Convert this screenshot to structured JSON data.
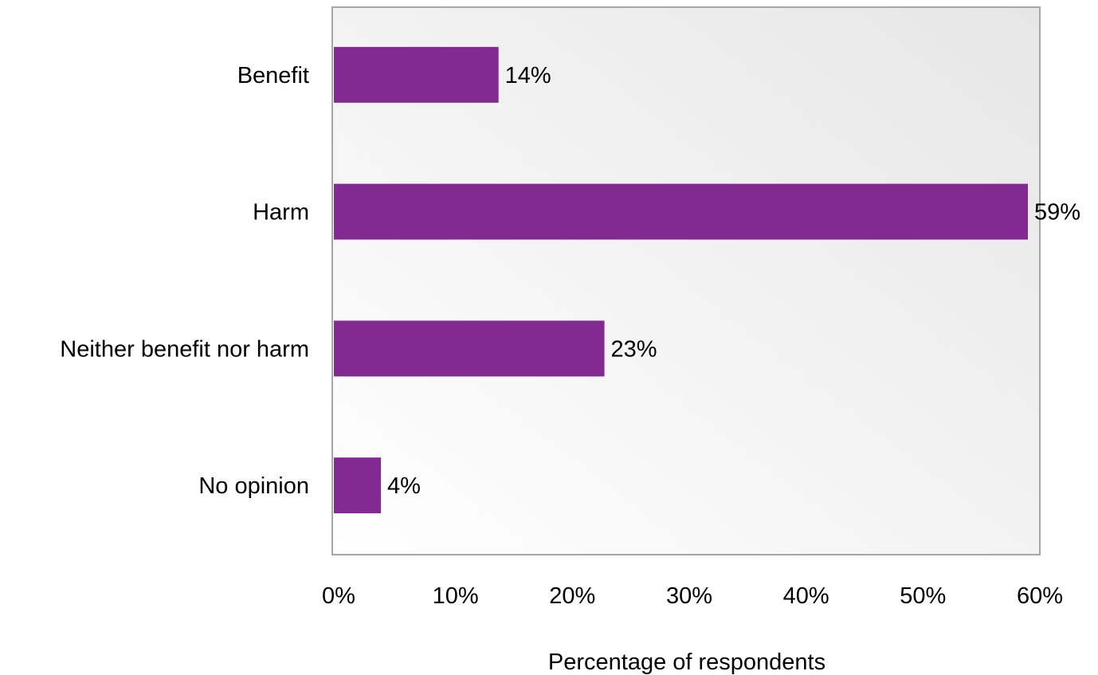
{
  "chart_data": {
    "type": "bar",
    "orientation": "horizontal",
    "title": "",
    "xlabel": "Percentage of respondents",
    "ylabel": "",
    "categories": [
      "Benefit",
      "Harm",
      "Neither benefit nor harm",
      "No opinion"
    ],
    "values": [
      14,
      59,
      23,
      4
    ],
    "value_labels": [
      "14%",
      "59%",
      "23%",
      "4%"
    ],
    "xlim": [
      0,
      60
    ],
    "xticks": [
      0,
      10,
      20,
      30,
      40,
      50,
      60
    ],
    "xtick_labels": [
      "0%",
      "10%",
      "20%",
      "30%",
      "40%",
      "50%",
      "60%"
    ],
    "grid": false,
    "legend": "none",
    "bar_color": "#822A92",
    "plot_background": [
      "#FFFFFF",
      "#E6E6E6"
    ],
    "plot_border_color": "#A6A6A6"
  }
}
